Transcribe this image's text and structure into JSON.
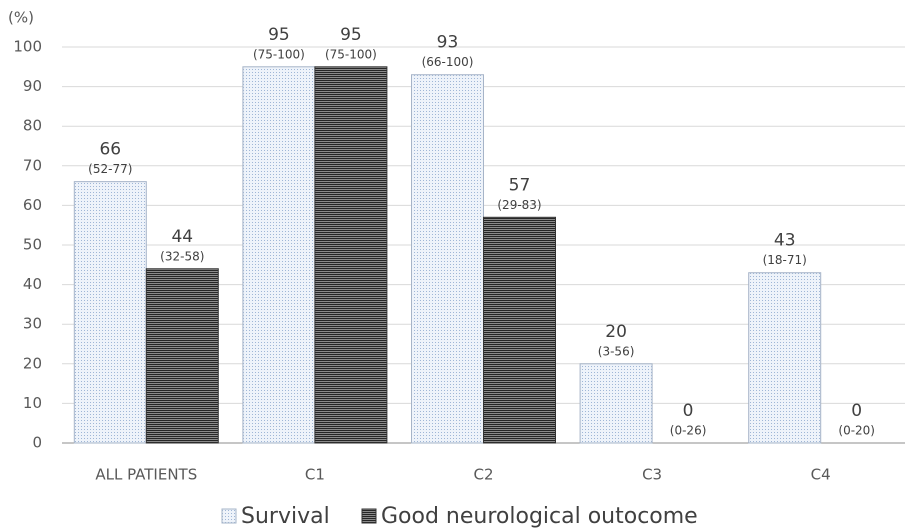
{
  "chart_data": {
    "type": "bar",
    "y_label": "(%)",
    "categories": [
      "ALL PATIENTS",
      "C1",
      "C2",
      "C3",
      "C4"
    ],
    "series": [
      {
        "name": "Survival",
        "color": "#dce6f2",
        "values": [
          66,
          95,
          93,
          20,
          43
        ],
        "intervals": [
          "(52-77)",
          "(75-100)",
          "(66-100)",
          "(3-56)",
          "(18-71)"
        ]
      },
      {
        "name": "Good neurological outocome",
        "color": "#404040",
        "values": [
          44,
          95,
          57,
          0,
          0
        ],
        "intervals": [
          "(32-58)",
          "(75-100)",
          "(29-83)",
          "(0-26)",
          "(0-20)"
        ]
      }
    ],
    "ylim": [
      0,
      100
    ],
    "yticks": [
      0,
      10,
      20,
      30,
      40,
      50,
      60,
      70,
      80,
      90,
      100
    ],
    "grid": true,
    "legend": "bottom"
  }
}
